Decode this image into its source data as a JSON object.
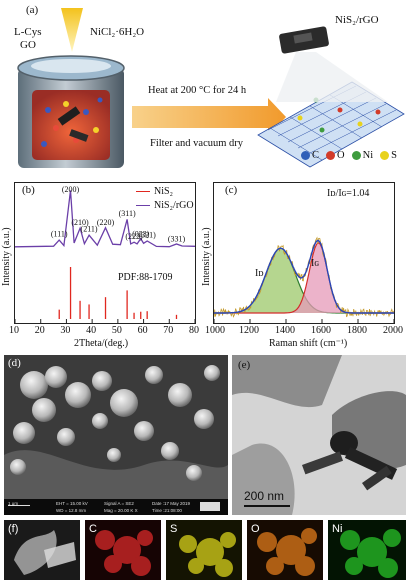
{
  "panel_a": {
    "label": "(a)",
    "reagent_left_1": "L-Cys",
    "reagent_left_2": "GO",
    "reagent_right": "NiCl₂·6H₂O",
    "step_1": "Heat at 200 °C for 24 h",
    "step_2": "Filter and vacuum dry",
    "product": "NiS₂/rGO",
    "legend": [
      {
        "symbol": "C",
        "color": "#2f5fb8"
      },
      {
        "symbol": "O",
        "color": "#d23b2a"
      },
      {
        "symbol": "Ni",
        "color": "#3f9c3f"
      },
      {
        "symbol": "S",
        "color": "#e8d21c"
      }
    ]
  },
  "chart_data": [
    {
      "panel": "(b)",
      "type": "line",
      "xlabel": "2Theta/(deg.)",
      "ylabel": "Intensity (a.u.)",
      "xlim": [
        10,
        80
      ],
      "x_ticks": [
        10,
        20,
        30,
        40,
        50,
        60,
        70,
        80
      ],
      "legend_position": "top-right",
      "annotation": "PDF:88-1709",
      "series": [
        {
          "name": "NiS₂",
          "kind": "reference-sticks",
          "color": "#e0271f",
          "x": [
            27.2,
            31.6,
            35.3,
            38.8,
            45.2,
            53.6,
            56.3,
            58.9,
            61.4,
            72.8
          ],
          "y": [
            0.18,
            1.0,
            0.35,
            0.28,
            0.42,
            0.55,
            0.12,
            0.14,
            0.15,
            0.08
          ]
        },
        {
          "name": "NiS₂/rGO",
          "kind": "pattern",
          "color": "#6b3fa8",
          "x": [
            10,
            25,
            27.2,
            29,
            31.6,
            33,
            35.3,
            37,
            38.8,
            42,
            45.2,
            48,
            51,
            53.6,
            55,
            56.3,
            57.5,
            58.9,
            60,
            61.4,
            65,
            70,
            72.8,
            75,
            80
          ],
          "y": [
            0.1,
            0.12,
            0.22,
            0.12,
            1.0,
            0.15,
            0.4,
            0.16,
            0.3,
            0.13,
            0.4,
            0.13,
            0.13,
            0.55,
            0.16,
            0.18,
            0.14,
            0.22,
            0.15,
            0.2,
            0.12,
            0.11,
            0.14,
            0.1,
            0.1
          ]
        }
      ],
      "peak_labels": [
        {
          "text": "(111)",
          "x": 27.2
        },
        {
          "text": "(200)",
          "x": 31.6
        },
        {
          "text": "(210)",
          "x": 35.3
        },
        {
          "text": "(211)",
          "x": 38.8
        },
        {
          "text": "(220)",
          "x": 45.2
        },
        {
          "text": "(311)",
          "x": 53.6
        },
        {
          "text": "(222)",
          "x": 56.3
        },
        {
          "text": "(023)",
          "x": 58.9
        },
        {
          "text": "(321)",
          "x": 61.4
        },
        {
          "text": "(331)",
          "x": 72.8
        }
      ]
    },
    {
      "panel": "(c)",
      "type": "line",
      "xlabel": "Raman shift (cm⁻¹)",
      "ylabel": "Intensity (a.u.)",
      "xlim": [
        1000,
        2000
      ],
      "x_ticks": [
        1000,
        1200,
        1400,
        1600,
        1800,
        2000
      ],
      "annotation": "Iᴅ/Iɢ=1.04",
      "bands": [
        {
          "name": "Iᴅ",
          "center": 1370,
          "amplitude": 0.72,
          "width": 115,
          "fill": "#9cc86a",
          "line": "#2f7d2f"
        },
        {
          "name": "Iɢ",
          "center": 1580,
          "amplitude": 0.78,
          "width": 70,
          "fill": "#e59ab8",
          "line": "#d42c2c"
        }
      ],
      "fit_color": "#2a46b8",
      "raw_color": "#c49a2a"
    }
  ],
  "panel_d": {
    "label": "(d)",
    "info": [
      "1 μm",
      "EHT = 15.00 kV",
      "WD = 12.8 mm",
      "Signal A = SE2",
      "Mag = 20.00 K X",
      "Date :17 May 2019",
      "Time :21:08:00"
    ]
  },
  "panel_e": {
    "label": "(e)",
    "scale": "200 nm"
  },
  "panel_f": {
    "label": "(f)",
    "maps": [
      {
        "element": "",
        "tint": "#b8b8b8"
      },
      {
        "element": "C",
        "tint": "#d82828"
      },
      {
        "element": "S",
        "tint": "#d8d21a"
      },
      {
        "element": "O",
        "tint": "#e07a1a"
      },
      {
        "element": "Ni",
        "tint": "#28c028"
      }
    ]
  }
}
